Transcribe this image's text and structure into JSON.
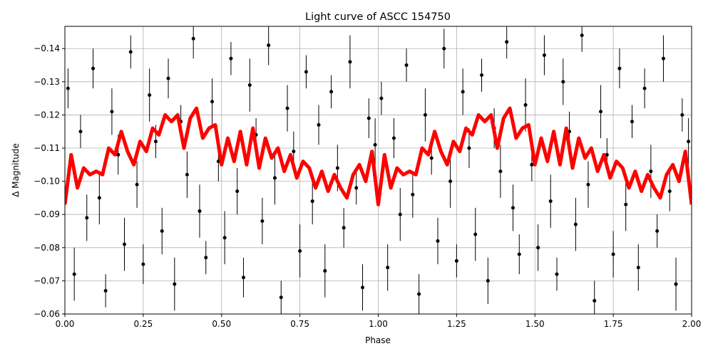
{
  "chart_data": {
    "type": "scatter",
    "title": "Light curve of ASCC 154750",
    "xlabel": "Phase",
    "ylabel": "Δ Magnitude",
    "xlim": [
      0,
      2
    ],
    "ylim": [
      -0.06,
      -0.1467
    ],
    "grid": true,
    "xticks": [
      {
        "value": 0,
        "label": "0.00"
      },
      0.25,
      {
        "value": 0.5,
        "label": "0.50"
      },
      0.75,
      {
        "value": 1,
        "label": "1.00"
      },
      1.25,
      {
        "value": 1.5,
        "label": "1.50"
      },
      1.75,
      {
        "value": 2,
        "label": "2.00"
      }
    ],
    "yticks": [
      {
        "value": -0.14,
        "label": "−0.14"
      },
      {
        "value": -0.13,
        "label": "−0.13"
      },
      {
        "value": -0.12,
        "label": "−0.12"
      },
      {
        "value": -0.11,
        "label": "−0.11"
      },
      {
        "value": -0.1,
        "label": "−0.10"
      },
      {
        "value": -0.09,
        "label": "−0.09"
      },
      {
        "value": -0.08,
        "label": "−0.08"
      },
      {
        "value": -0.07,
        "label": "−0.07"
      },
      {
        "value": -0.06,
        "label": "−0.06"
      }
    ],
    "series": [
      {
        "type": "scatter",
        "color": "#000000",
        "x": [
          0.01,
          0.03,
          0.05,
          0.07,
          0.09,
          0.11,
          0.13,
          0.15,
          0.17,
          0.19,
          0.21,
          0.23,
          0.25,
          0.27,
          0.29,
          0.31,
          0.33,
          0.35,
          0.37,
          0.39,
          0.41,
          0.43,
          0.45,
          0.47,
          0.49,
          0.51,
          0.53,
          0.55,
          0.57,
          0.59,
          0.61,
          0.63,
          0.65,
          0.67,
          0.69,
          0.71,
          0.73,
          0.75,
          0.77,
          0.79,
          0.81,
          0.83,
          0.85,
          0.87,
          0.89,
          0.91,
          0.93,
          0.95,
          0.97,
          0.99,
          1.01,
          1.03,
          1.05,
          1.07,
          1.09,
          1.11,
          1.13,
          1.15,
          1.17,
          1.19,
          1.21,
          1.23,
          1.25,
          1.27,
          1.29,
          1.31,
          1.33,
          1.35,
          1.37,
          1.39,
          1.41,
          1.43,
          1.45,
          1.47,
          1.49,
          1.51,
          1.53,
          1.55,
          1.57,
          1.59,
          1.61,
          1.63,
          1.65,
          1.67,
          1.69,
          1.71,
          1.73,
          1.75,
          1.77,
          1.79,
          1.81,
          1.83,
          1.85,
          1.87,
          1.89,
          1.91,
          1.93,
          1.95,
          1.97,
          1.99
        ],
        "values": [
          -0.128,
          -0.072,
          -0.115,
          -0.089,
          -0.134,
          -0.095,
          -0.067,
          -0.121,
          -0.108,
          -0.081,
          -0.139,
          -0.099,
          -0.075,
          -0.126,
          -0.112,
          -0.085,
          -0.131,
          -0.069,
          -0.118,
          -0.102,
          -0.143,
          -0.091,
          -0.077,
          -0.124,
          -0.106,
          -0.083,
          -0.137,
          -0.097,
          -0.071,
          -0.129,
          -0.114,
          -0.088,
          -0.141,
          -0.101,
          -0.065,
          -0.122,
          -0.109,
          -0.079,
          -0.133,
          -0.094,
          -0.117,
          -0.073,
          -0.127,
          -0.104,
          -0.086,
          -0.136,
          -0.098,
          -0.068,
          -0.119,
          -0.111,
          -0.125,
          -0.074,
          -0.113,
          -0.09,
          -0.135,
          -0.096,
          -0.066,
          -0.12,
          -0.107,
          -0.082,
          -0.14,
          -0.1,
          -0.076,
          -0.127,
          -0.11,
          -0.084,
          -0.132,
          -0.07,
          -0.116,
          -0.103,
          -0.142,
          -0.092,
          -0.078,
          -0.123,
          -0.105,
          -0.08,
          -0.138,
          -0.094,
          -0.072,
          -0.13,
          -0.115,
          -0.087,
          -0.144,
          -0.099,
          -0.064,
          -0.121,
          -0.108,
          -0.078,
          -0.134,
          -0.093,
          -0.118,
          -0.074,
          -0.128,
          -0.103,
          -0.085,
          -0.137,
          -0.097,
          -0.069,
          -0.12,
          -0.112
        ],
        "yerr": [
          0.006,
          0.008,
          0.005,
          0.007,
          0.006,
          0.008,
          0.005,
          0.007,
          0.006,
          0.008,
          0.005,
          0.007,
          0.006,
          0.008,
          0.005,
          0.007,
          0.006,
          0.008,
          0.005,
          0.007,
          0.006,
          0.008,
          0.005,
          0.007,
          0.006,
          0.008,
          0.005,
          0.007,
          0.006,
          0.008,
          0.005,
          0.007,
          0.006,
          0.008,
          0.005,
          0.007,
          0.006,
          0.008,
          0.005,
          0.007,
          0.006,
          0.008,
          0.005,
          0.007,
          0.006,
          0.008,
          0.005,
          0.007,
          0.006,
          0.008,
          0.005,
          0.007,
          0.006,
          0.008,
          0.005,
          0.007,
          0.006,
          0.008,
          0.005,
          0.007,
          0.006,
          0.008,
          0.005,
          0.007,
          0.006,
          0.008,
          0.005,
          0.007,
          0.006,
          0.008,
          0.005,
          0.007,
          0.006,
          0.008,
          0.005,
          0.007,
          0.006,
          0.008,
          0.005,
          0.007,
          0.006,
          0.008,
          0.005,
          0.007,
          0.006,
          0.008,
          0.005,
          0.007,
          0.006,
          0.008,
          0.005,
          0.007,
          0.006,
          0.008,
          0.005,
          0.007,
          0.006,
          0.008,
          0.005,
          0.007
        ]
      },
      {
        "type": "line",
        "color": "#ff0000",
        "x": [
          0,
          0.02,
          0.04,
          0.06,
          0.08,
          0.1,
          0.12,
          0.14,
          0.16,
          0.18,
          0.2,
          0.22,
          0.24,
          0.26,
          0.28,
          0.3,
          0.32,
          0.34,
          0.36,
          0.38,
          0.4,
          0.42,
          0.44,
          0.46,
          0.48,
          0.5,
          0.52,
          0.54,
          0.56,
          0.58,
          0.6,
          0.62,
          0.64,
          0.66,
          0.68,
          0.7,
          0.72,
          0.74,
          0.76,
          0.78,
          0.8,
          0.82,
          0.84,
          0.86,
          0.88,
          0.9,
          0.92,
          0.94,
          0.96,
          0.98,
          1,
          1.02,
          1.04,
          1.06,
          1.08,
          1.1,
          1.12,
          1.14,
          1.16,
          1.18,
          1.2,
          1.22,
          1.24,
          1.26,
          1.28,
          1.3,
          1.32,
          1.34,
          1.36,
          1.38,
          1.4,
          1.42,
          1.44,
          1.46,
          1.48,
          1.5,
          1.52,
          1.54,
          1.56,
          1.58,
          1.6,
          1.62,
          1.64,
          1.66,
          1.68,
          1.7,
          1.72,
          1.74,
          1.76,
          1.78,
          1.8,
          1.82,
          1.84,
          1.86,
          1.88,
          1.9,
          1.92,
          1.94,
          1.96,
          1.98,
          2
        ],
        "values": [
          -0.093,
          -0.108,
          -0.098,
          -0.104,
          -0.102,
          -0.103,
          -0.102,
          -0.11,
          -0.108,
          -0.115,
          -0.109,
          -0.105,
          -0.112,
          -0.109,
          -0.116,
          -0.114,
          -0.12,
          -0.118,
          -0.12,
          -0.11,
          -0.119,
          -0.122,
          -0.113,
          -0.116,
          -0.117,
          -0.105,
          -0.113,
          -0.106,
          -0.115,
          -0.105,
          -0.116,
          -0.104,
          -0.113,
          -0.107,
          -0.11,
          -0.103,
          -0.108,
          -0.101,
          -0.106,
          -0.104,
          -0.098,
          -0.103,
          -0.097,
          -0.102,
          -0.098,
          -0.095,
          -0.102,
          -0.105,
          -0.1,
          -0.109,
          -0.093,
          -0.108,
          -0.098,
          -0.104,
          -0.102,
          -0.103,
          -0.102,
          -0.11,
          -0.108,
          -0.115,
          -0.109,
          -0.105,
          -0.112,
          -0.109,
          -0.116,
          -0.114,
          -0.12,
          -0.118,
          -0.12,
          -0.11,
          -0.119,
          -0.122,
          -0.113,
          -0.116,
          -0.117,
          -0.105,
          -0.113,
          -0.106,
          -0.115,
          -0.105,
          -0.116,
          -0.104,
          -0.113,
          -0.107,
          -0.11,
          -0.103,
          -0.108,
          -0.101,
          -0.106,
          -0.104,
          -0.098,
          -0.103,
          -0.097,
          -0.102,
          -0.098,
          -0.095,
          -0.102,
          -0.105,
          -0.1,
          -0.109,
          -0.093
        ]
      }
    ]
  }
}
